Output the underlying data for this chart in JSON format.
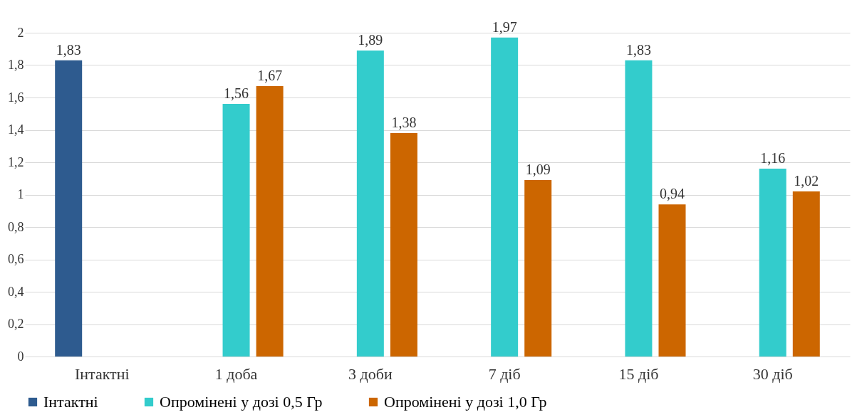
{
  "chart_data": {
    "type": "bar",
    "categories": [
      "Інтактні",
      "1 доба",
      "3 доби",
      "7 діб",
      "15 діб",
      "30 діб"
    ],
    "series": [
      {
        "name": "Інтактні",
        "color": "#2e5b8f",
        "values": [
          1.83,
          null,
          null,
          null,
          null,
          null
        ],
        "value_labels": [
          "1,83",
          null,
          null,
          null,
          null,
          null
        ]
      },
      {
        "name": "Опромінені у дозі 0,5 Гр",
        "color": "#33cccc",
        "values": [
          null,
          1.56,
          1.89,
          1.97,
          1.83,
          1.16
        ],
        "value_labels": [
          null,
          "1,56",
          "1,89",
          "1,97",
          "1,83",
          "1,16"
        ]
      },
      {
        "name": "Опромінені у дозі 1,0 Гр",
        "color": "#cc6600",
        "values": [
          null,
          1.67,
          1.38,
          1.09,
          0.94,
          1.02
        ],
        "value_labels": [
          null,
          "1,67",
          "1,38",
          "1,09",
          "0,94",
          "1,02"
        ]
      }
    ],
    "ylim": [
      0,
      2
    ],
    "yticks": [
      0,
      {
        "value": 0.2,
        "label": "0,2"
      },
      {
        "value": 0.4,
        "label": "0,4"
      },
      {
        "value": 0.6,
        "label": "0,6"
      },
      {
        "value": 0.8,
        "label": "0,8"
      },
      1,
      {
        "value": 1.2,
        "label": "1,2"
      },
      {
        "value": 1.4,
        "label": "1,4"
      },
      {
        "value": 1.6,
        "label": "1,6"
      },
      {
        "value": 1.8,
        "label": "1,8"
      },
      2
    ],
    "grid": "y",
    "legend": "bottom"
  }
}
